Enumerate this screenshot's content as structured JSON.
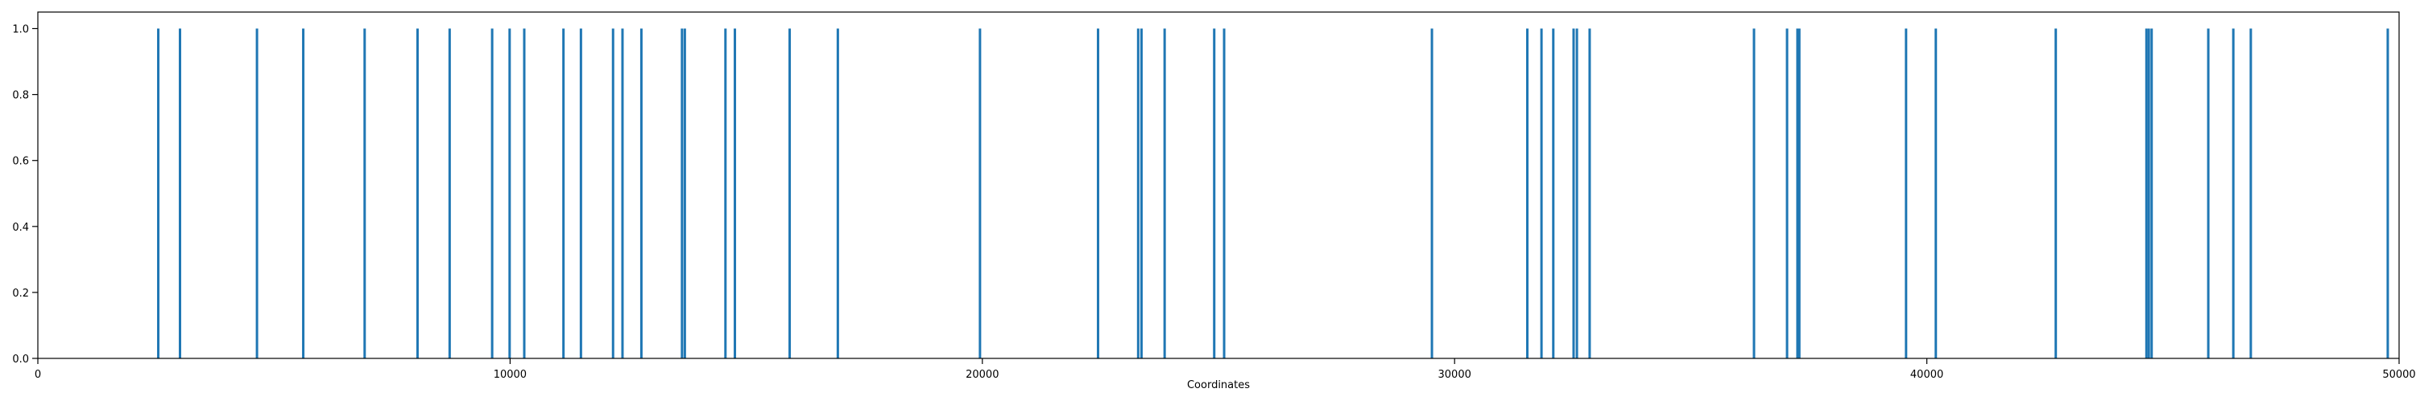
{
  "chart_data": {
    "type": "bar",
    "title": "",
    "xlabel": "Coordinates",
    "ylabel": "",
    "xlim": [
      0,
      50000
    ],
    "ylim": [
      0,
      1.05
    ],
    "grid": false,
    "bar_color": "#1f77b4",
    "xticks": [
      {
        "value": 0,
        "label": "0"
      },
      {
        "value": 10000,
        "label": "10000"
      },
      {
        "value": 20000,
        "label": "20000"
      },
      {
        "value": 30000,
        "label": "30000"
      },
      {
        "value": 40000,
        "label": "40000"
      },
      {
        "value": 50000,
        "label": "50000"
      }
    ],
    "yticks": [
      {
        "value": 0.0,
        "label": "0.0"
      },
      {
        "value": 0.2,
        "label": "0.2"
      },
      {
        "value": 0.4,
        "label": "0.4"
      },
      {
        "value": 0.6,
        "label": "0.6"
      },
      {
        "value": 0.8,
        "label": "0.8"
      },
      {
        "value": 1.0,
        "label": "1.0"
      }
    ],
    "x": [
      2550,
      3010,
      4640,
      5620,
      6920,
      8040,
      8720,
      9620,
      9990,
      10300,
      11130,
      11500,
      12180,
      12380,
      12780,
      13640,
      13700,
      14560,
      14760,
      15920,
      16940,
      19950,
      22450,
      23300,
      23370,
      23860,
      24910,
      25120,
      29520,
      31540,
      31840,
      32090,
      32520,
      32590,
      32860,
      36340,
      37040,
      37260,
      37300,
      39560,
      40190,
      42730,
      44650,
      44700,
      44760,
      45960,
      46490,
      46860,
      49760
    ],
    "values": [
      1,
      1,
      1,
      1,
      1,
      1,
      1,
      1,
      1,
      1,
      1,
      1,
      1,
      1,
      1,
      1,
      1,
      1,
      1,
      1,
      1,
      1,
      1,
      1,
      1,
      1,
      1,
      1,
      1,
      1,
      1,
      1,
      1,
      1,
      1,
      1,
      1,
      1,
      1,
      1,
      1,
      1,
      1,
      1,
      1,
      1,
      1,
      1,
      1
    ]
  }
}
